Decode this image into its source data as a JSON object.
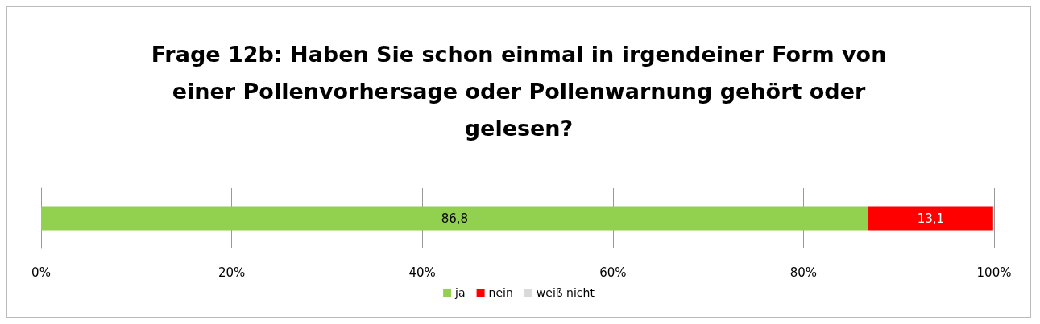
{
  "chart_data": {
    "type": "bar",
    "orientation": "horizontal",
    "stacked": true,
    "title": "Frage 12b: Haben Sie schon einmal in irgendeiner Form von\neiner Pollenvorhersage oder Pollenwarnung gehört oder\ngelesen?",
    "categories": [
      null
    ],
    "series": [
      {
        "name": "ja",
        "color": "#92d050",
        "values": [
          86.8
        ],
        "value_labels": [
          "86,8"
        ]
      },
      {
        "name": "nein",
        "color": "#ff0000",
        "values": [
          13.1
        ],
        "value_labels": [
          "13,1"
        ]
      },
      {
        "name": "weiß nicht",
        "color": "#d9d9d9",
        "values": [
          null
        ],
        "value_labels": [
          null
        ]
      }
    ],
    "xlim": [
      0,
      100
    ],
    "xticks": [
      {
        "value": 0,
        "label": "0%"
      },
      {
        "value": 20,
        "label": "20%"
      },
      {
        "value": 40,
        "label": "40%"
      },
      {
        "value": 60,
        "label": "60%"
      },
      {
        "value": 80,
        "label": "80%"
      },
      {
        "value": 100,
        "label": "100%"
      }
    ],
    "grid": "x",
    "legend": "bottom"
  }
}
